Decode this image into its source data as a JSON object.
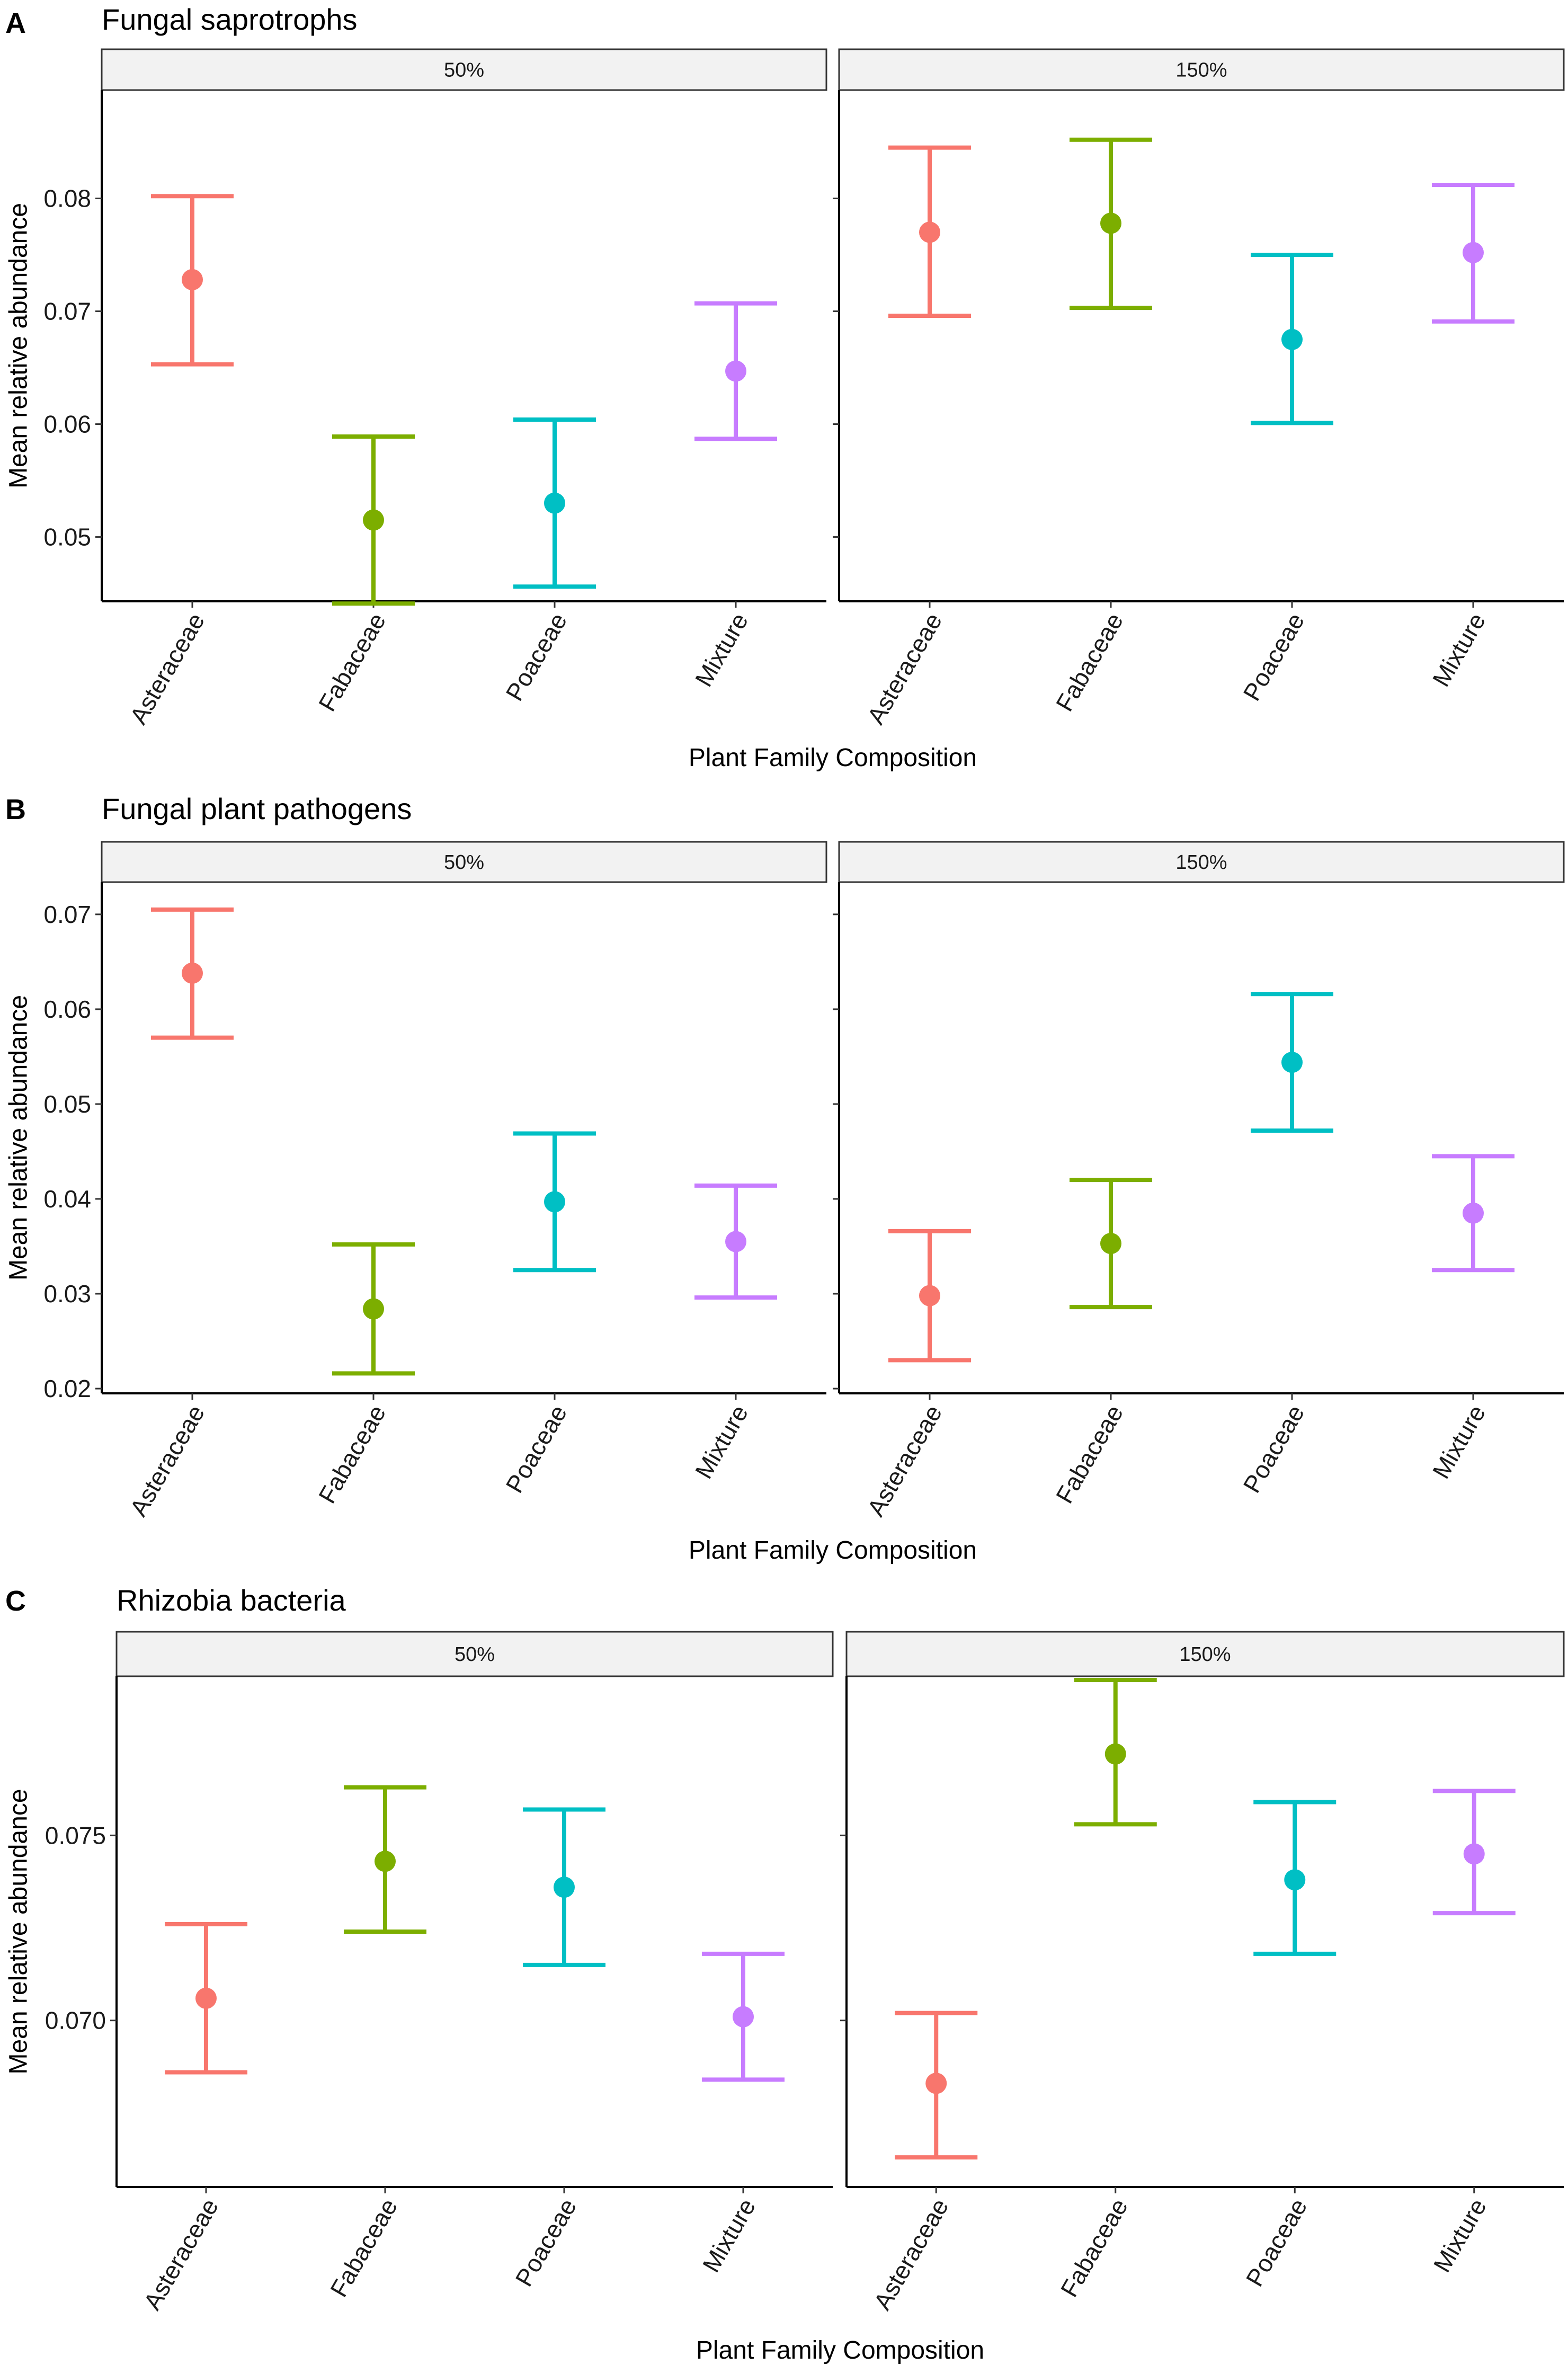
{
  "colors": {
    "Asteraceae": "#F8766D",
    "Fabaceae": "#7CAE00",
    "Poaceae": "#00BFC4",
    "Mixture": "#C77CFF"
  },
  "chart_data": [
    {
      "type": "scatter",
      "panel": "A",
      "title": "Fungal saprotrophs",
      "xlabel": "Plant Family Composition",
      "ylabel": "Mean relative abundance",
      "categories": [
        "Asteraceae",
        "Fabaceae",
        "Poaceae",
        "Mixture"
      ],
      "ylim": [
        0.0443,
        0.0896
      ],
      "yticks": [
        0.05,
        0.06,
        0.07,
        0.08
      ],
      "ytick_labels": [
        "0.05",
        "0.06",
        "0.07",
        "0.08"
      ],
      "facets": [
        {
          "label": "50%",
          "series": [
            {
              "name": "Asteraceae",
              "mean": 0.0728,
              "lower": 0.0653,
              "upper": 0.0802
            },
            {
              "name": "Fabaceae",
              "mean": 0.0515,
              "lower": 0.0441,
              "upper": 0.0589
            },
            {
              "name": "Poaceae",
              "mean": 0.053,
              "lower": 0.0456,
              "upper": 0.0604
            },
            {
              "name": "Mixture",
              "mean": 0.0647,
              "lower": 0.0587,
              "upper": 0.0707
            }
          ]
        },
        {
          "label": "150%",
          "series": [
            {
              "name": "Asteraceae",
              "mean": 0.077,
              "lower": 0.0696,
              "upper": 0.0845
            },
            {
              "name": "Fabaceae",
              "mean": 0.0778,
              "lower": 0.0703,
              "upper": 0.0852
            },
            {
              "name": "Poaceae",
              "mean": 0.0675,
              "lower": 0.0601,
              "upper": 0.075
            },
            {
              "name": "Mixture",
              "mean": 0.0752,
              "lower": 0.0691,
              "upper": 0.0812
            }
          ]
        }
      ]
    },
    {
      "type": "scatter",
      "panel": "B",
      "title": "Fungal plant pathogens",
      "xlabel": "Plant Family Composition",
      "ylabel": "Mean relative abundance",
      "categories": [
        "Asteraceae",
        "Fabaceae",
        "Poaceae",
        "Mixture"
      ],
      "ylim": [
        0.0195,
        0.0734
      ],
      "yticks": [
        0.02,
        0.03,
        0.04,
        0.05,
        0.06,
        0.07
      ],
      "ytick_labels": [
        "0.02",
        "0.03",
        "0.04",
        "0.05",
        "0.06",
        "0.07"
      ],
      "facets": [
        {
          "label": "50%",
          "series": [
            {
              "name": "Asteraceae",
              "mean": 0.0638,
              "lower": 0.057,
              "upper": 0.0705
            },
            {
              "name": "Fabaceae",
              "mean": 0.0284,
              "lower": 0.0216,
              "upper": 0.0352
            },
            {
              "name": "Poaceae",
              "mean": 0.0397,
              "lower": 0.0325,
              "upper": 0.0469
            },
            {
              "name": "Mixture",
              "mean": 0.0355,
              "lower": 0.0296,
              "upper": 0.0414
            }
          ]
        },
        {
          "label": "150%",
          "series": [
            {
              "name": "Asteraceae",
              "mean": 0.0298,
              "lower": 0.023,
              "upper": 0.0366
            },
            {
              "name": "Fabaceae",
              "mean": 0.0353,
              "lower": 0.0286,
              "upper": 0.042
            },
            {
              "name": "Poaceae",
              "mean": 0.0544,
              "lower": 0.0472,
              "upper": 0.0616
            },
            {
              "name": "Mixture",
              "mean": 0.0385,
              "lower": 0.0325,
              "upper": 0.0445
            }
          ]
        }
      ]
    },
    {
      "type": "scatter",
      "panel": "C",
      "title": "Rhizobia bacteria",
      "xlabel": "Plant Family Composition",
      "ylabel": "Mean relative abundance",
      "categories": [
        "Asteraceae",
        "Fabaceae",
        "Poaceae",
        "Mixture"
      ],
      "ylim": [
        0.0655,
        0.0793
      ],
      "yticks": [
        0.07,
        0.075
      ],
      "ytick_labels": [
        "0.070",
        "0.075"
      ],
      "facets": [
        {
          "label": "50%",
          "series": [
            {
              "name": "Asteraceae",
              "mean": 0.0706,
              "lower": 0.0686,
              "upper": 0.0726
            },
            {
              "name": "Fabaceae",
              "mean": 0.0743,
              "lower": 0.0724,
              "upper": 0.0763
            },
            {
              "name": "Poaceae",
              "mean": 0.0736,
              "lower": 0.0715,
              "upper": 0.0757
            },
            {
              "name": "Mixture",
              "mean": 0.0701,
              "lower": 0.0684,
              "upper": 0.0718
            }
          ]
        },
        {
          "label": "150%",
          "series": [
            {
              "name": "Asteraceae",
              "mean": 0.0683,
              "lower": 0.0663,
              "upper": 0.0702
            },
            {
              "name": "Fabaceae",
              "mean": 0.0772,
              "lower": 0.0753,
              "upper": 0.0792
            },
            {
              "name": "Poaceae",
              "mean": 0.0738,
              "lower": 0.0718,
              "upper": 0.0759
            },
            {
              "name": "Mixture",
              "mean": 0.0745,
              "lower": 0.0729,
              "upper": 0.0762
            }
          ]
        }
      ]
    }
  ]
}
